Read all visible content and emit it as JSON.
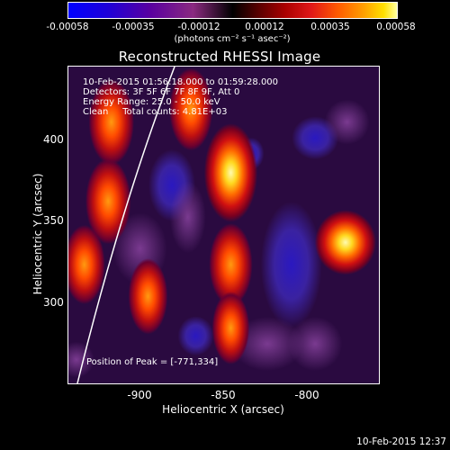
{
  "colorbar": {
    "ticks": [
      "-0.00058",
      "-0.00035",
      "-0.00012",
      "0.00012",
      "0.00035",
      "0.00058"
    ],
    "units": "(photons cm⁻² s⁻¹ asec⁻²)"
  },
  "title": "Reconstructed RHESSI Image",
  "info": {
    "time": "10-Feb-2015 01:56:18.000 to 01:59:28.000",
    "detectors": "Detectors: 3F 5F 6F 7F 8F 9F, Att 0",
    "energy": "Energy Range: 25.0 - 50.0 keV",
    "clean": "Clean     Total counts: 4.81E+03"
  },
  "peak_label": "Position of Peak = [-771,334]",
  "chart_data": {
    "type": "heatmap",
    "title": "Reconstructed RHESSI Image",
    "xlabel": "Heliocentric X (arcsec)",
    "ylabel": "Heliocentric Y (arcsec)",
    "xticks": [
      "-900",
      "-850",
      "-800"
    ],
    "yticks": [
      "400",
      "350",
      "300"
    ],
    "xlim": [
      -945,
      -750
    ],
    "ylim": [
      245,
      445
    ],
    "colorbar_range": [
      -0.00058,
      0.00058
    ],
    "peak_position": [
      -771,
      334
    ],
    "sources": [
      {
        "x": -771,
        "y": 334,
        "level": 1.0
      },
      {
        "x": -843,
        "y": 378,
        "level": 0.8
      },
      {
        "x": -920,
        "y": 360,
        "level": 0.6
      },
      {
        "x": -918,
        "y": 410,
        "level": 0.6
      },
      {
        "x": -868,
        "y": 418,
        "level": 0.55
      },
      {
        "x": -843,
        "y": 320,
        "level": 0.55
      },
      {
        "x": -935,
        "y": 320,
        "level": 0.5
      },
      {
        "x": -895,
        "y": 300,
        "level": 0.45
      },
      {
        "x": -843,
        "y": 280,
        "level": 0.4
      }
    ]
  },
  "timestamp": "10-Feb-2015 12:37"
}
